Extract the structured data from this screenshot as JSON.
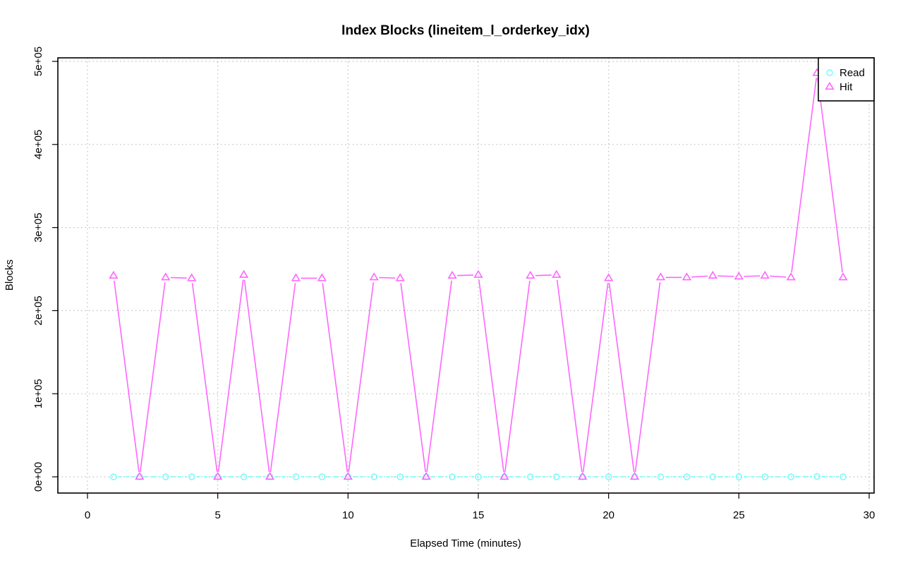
{
  "chart_data": {
    "type": "line",
    "title": "Index Blocks (lineitem_l_orderkey_idx)",
    "xlabel": "Elapsed Time (minutes)",
    "ylabel": "Blocks",
    "xlim": [
      0,
      30
    ],
    "ylim": [
      0,
      500000
    ],
    "x_ticks": [
      0,
      5,
      10,
      15,
      20,
      25,
      30
    ],
    "x_tick_labels": [
      "0",
      "5",
      "10",
      "15",
      "20",
      "25",
      "30"
    ],
    "y_ticks": [
      0,
      100000,
      200000,
      300000,
      400000,
      500000
    ],
    "y_tick_labels": [
      "0e+00",
      "1e+05",
      "2e+05",
      "3e+05",
      "4e+05",
      "5e+05"
    ],
    "grid": true,
    "legend_position": "top-right",
    "x": [
      1,
      2,
      3,
      4,
      5,
      6,
      7,
      8,
      9,
      10,
      11,
      12,
      13,
      14,
      15,
      16,
      17,
      18,
      19,
      20,
      21,
      22,
      23,
      24,
      25,
      26,
      27,
      28,
      29
    ],
    "series": [
      {
        "name": "Read",
        "color": "#66ffff",
        "marker": "circle",
        "values": [
          0,
          0,
          0,
          0,
          0,
          0,
          0,
          0,
          0,
          0,
          0,
          0,
          0,
          0,
          0,
          0,
          0,
          0,
          0,
          0,
          0,
          0,
          0,
          0,
          0,
          0,
          0,
          500,
          0
        ]
      },
      {
        "name": "Hit",
        "color": "#ff66ff",
        "marker": "triangle",
        "values": [
          242000,
          0,
          240000,
          239000,
          0,
          243000,
          0,
          239000,
          239000,
          0,
          240000,
          239000,
          0,
          242000,
          243000,
          0,
          242000,
          243000,
          0,
          239000,
          0,
          240000,
          240000,
          242000,
          241000,
          242000,
          240000,
          486000,
          240000
        ]
      }
    ]
  }
}
